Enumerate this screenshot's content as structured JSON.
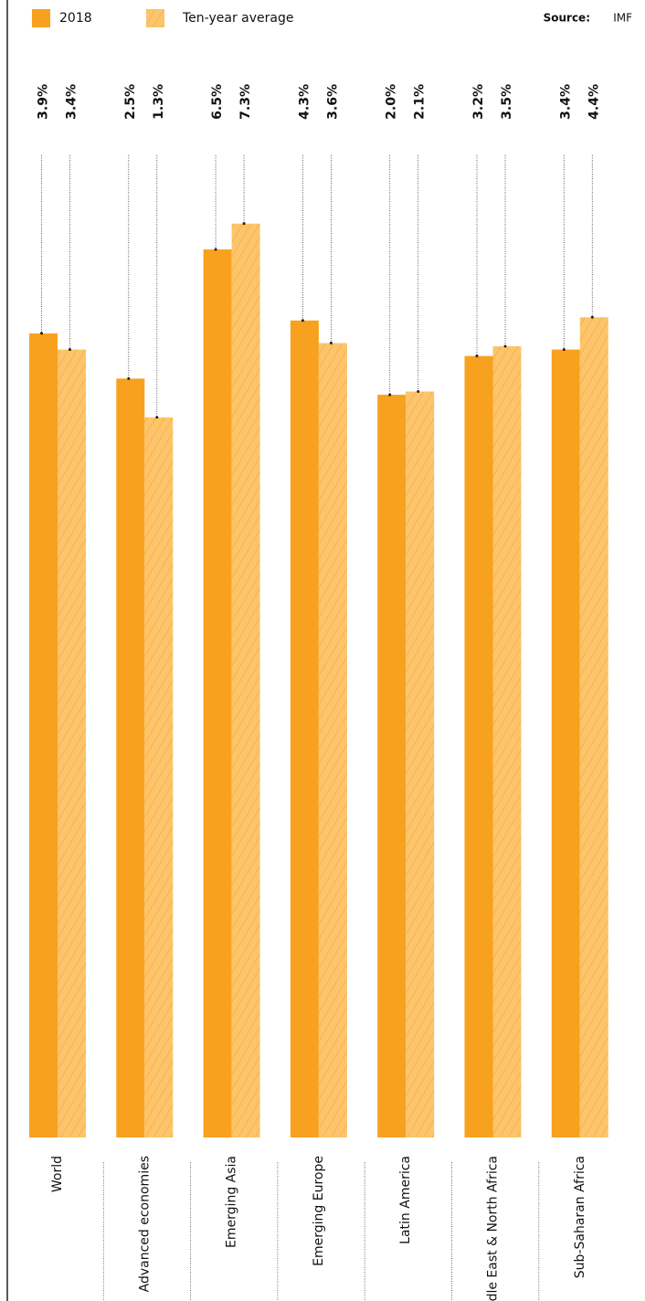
{
  "chart_data": {
    "type": "bar",
    "source_label": "Source:",
    "source": "IMF",
    "categories": [
      "World",
      "Advanced economies",
      "Emerging Asia",
      "Emerging Europe",
      "Latin America",
      "Middle East & North Africa",
      "Sub-Saharan Africa"
    ],
    "series": [
      {
        "name": "2018",
        "color": "#f7a11f",
        "values": [
          3.9,
          2.5,
          6.5,
          4.3,
          2.0,
          3.2,
          3.4
        ],
        "value_labels": [
          "3.9%",
          "2.5%",
          "6.5%",
          "4.3%",
          "2.0%",
          "3.2%",
          "3.4%"
        ]
      },
      {
        "name": "Ten-year average",
        "color": "#fcc46b",
        "hatch": true,
        "values": [
          3.4,
          1.3,
          7.3,
          3.6,
          2.1,
          3.5,
          4.4
        ],
        "value_labels": [
          "3.4%",
          "1.3%",
          "7.3%",
          "3.6%",
          "2.1%",
          "3.5%",
          "4.4%"
        ]
      }
    ],
    "ylim": [
      -21,
      8
    ]
  }
}
